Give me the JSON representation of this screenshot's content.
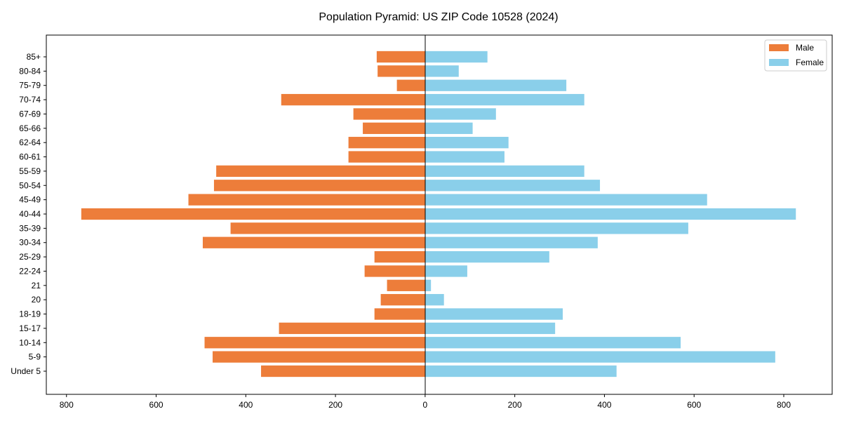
{
  "chart_data": {
    "type": "bar",
    "orientation": "horizontal-pyramid",
    "title": "Population Pyramid: US ZIP Code 10528 (2024)",
    "xlabel": "",
    "ylabel": "",
    "xlim": [
      -845,
      908
    ],
    "xticks": [
      -800,
      -600,
      -400,
      -200,
      0,
      200,
      400,
      600,
      800
    ],
    "xtick_labels": [
      "800",
      "600",
      "400",
      "200",
      "0",
      "200",
      "400",
      "600",
      "800"
    ],
    "categories": [
      "Under 5",
      "5-9",
      "10-14",
      "15-17",
      "18-19",
      "20",
      "21",
      "22-24",
      "25-29",
      "30-34",
      "35-39",
      "40-44",
      "45-49",
      "50-54",
      "55-59",
      "60-61",
      "62-64",
      "65-66",
      "67-69",
      "70-74",
      "75-79",
      "80-84",
      "85+"
    ],
    "series": [
      {
        "name": "Male",
        "color": "#ED7D3A",
        "side": "left",
        "values": [
          366,
          474,
          492,
          326,
          113,
          99,
          85,
          135,
          113,
          496,
          434,
          767,
          528,
          471,
          466,
          171,
          171,
          139,
          160,
          321,
          63,
          106,
          108
        ]
      },
      {
        "name": "Female",
        "color": "#8ACFEA",
        "side": "right",
        "values": [
          427,
          781,
          570,
          290,
          307,
          42,
          13,
          94,
          277,
          385,
          587,
          827,
          629,
          390,
          355,
          177,
          186,
          106,
          158,
          355,
          315,
          75,
          139
        ]
      }
    ],
    "legend": {
      "position": "top-right",
      "entries": [
        "Male",
        "Female"
      ]
    },
    "grid": false
  }
}
